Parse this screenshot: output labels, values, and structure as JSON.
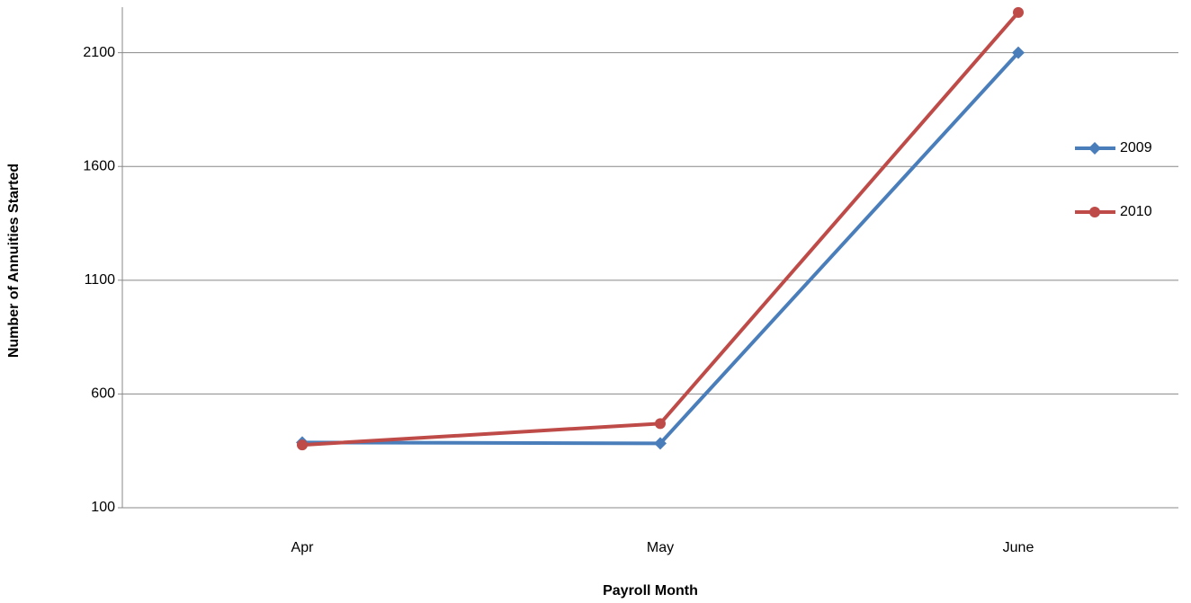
{
  "chart_data": {
    "type": "line",
    "x_label": "Payroll Month",
    "y_label": "Number of Annuities Started",
    "categories": [
      "Apr",
      "May",
      "June"
    ],
    "series": [
      {
        "name": "2009",
        "color": "#4a7ebb",
        "marker": "diamond",
        "values": [
          387,
          383,
          2100
        ]
      },
      {
        "name": "2010",
        "color": "#be4b48",
        "marker": "circle",
        "values": [
          376,
          470,
          2277
        ]
      }
    ],
    "ylim": [
      100,
      2300
    ],
    "yticks": [
      100,
      600,
      1100,
      1600,
      2100
    ],
    "grid": true,
    "legend": "right"
  }
}
